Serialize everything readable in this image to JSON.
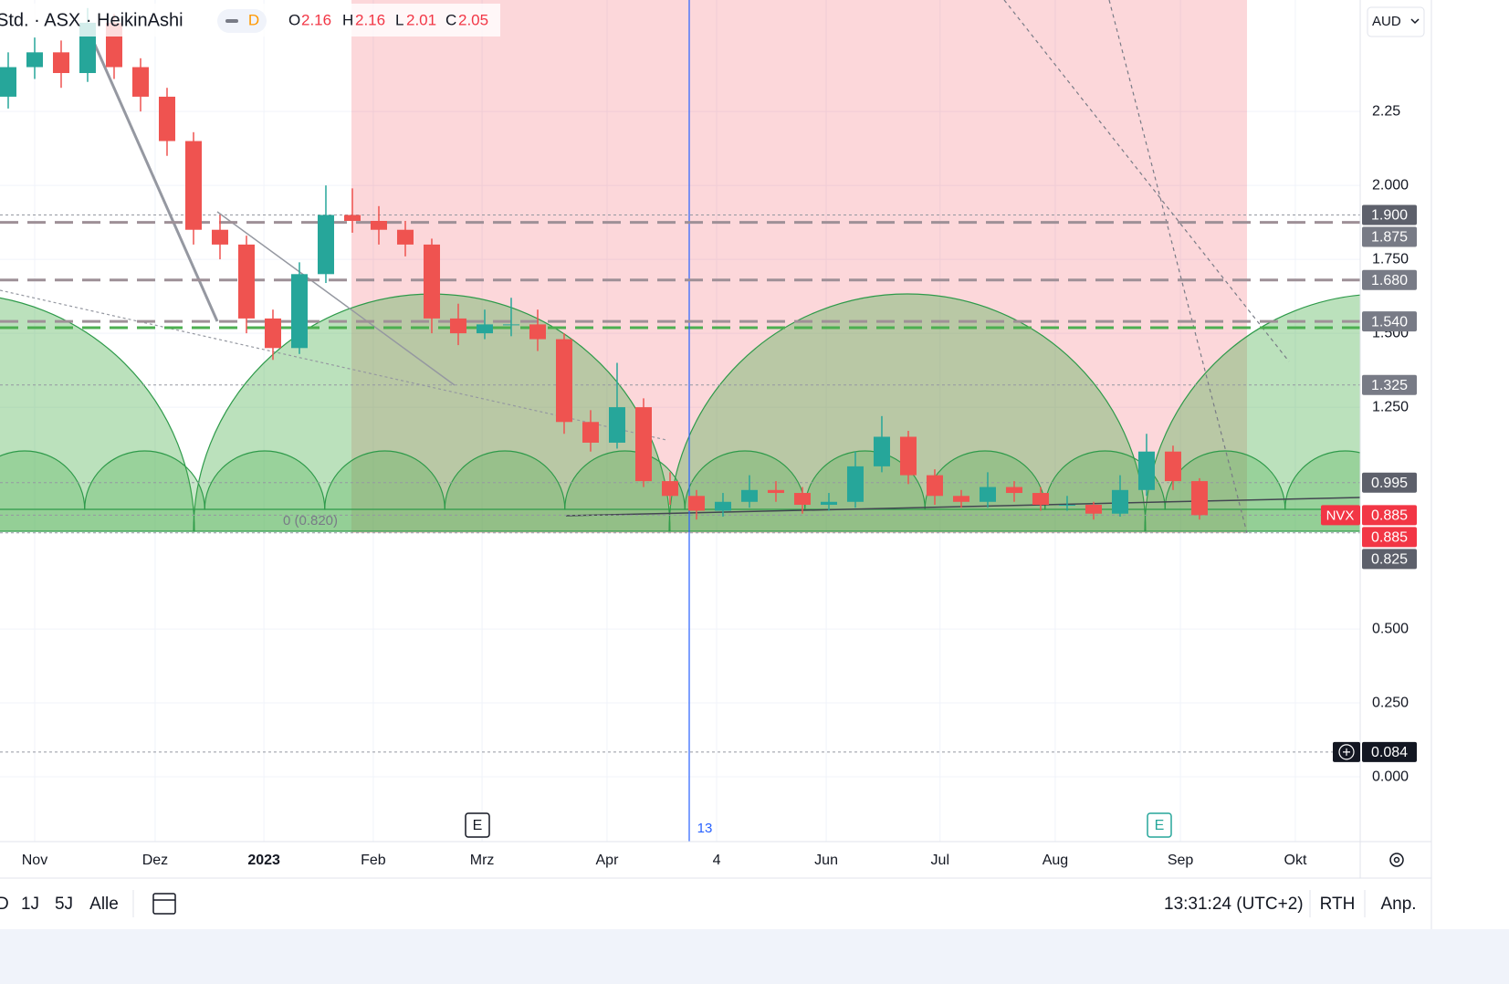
{
  "chart_data": {
    "type": "candlestick",
    "title": "Std. · ASX · HeikinAshi",
    "interval": "D",
    "ohlc": [
      {
        "key": "O",
        "value": 2.16
      },
      {
        "key": "H",
        "value": 2.16
      },
      {
        "key": "L",
        "value": 2.01
      },
      {
        "key": "C",
        "value": 2.05
      }
    ],
    "currency": "AUD",
    "up_color": "#26a69a",
    "down_color": "#ef5350",
    "x": [
      0,
      1,
      2,
      3,
      4,
      5,
      6,
      7,
      8,
      9,
      10,
      11,
      12,
      13,
      14,
      15,
      16,
      17,
      18,
      19,
      20,
      21,
      22,
      23,
      24,
      25,
      26,
      27,
      28,
      29,
      30,
      31,
      32,
      33,
      34,
      35,
      36,
      37,
      38,
      39,
      40,
      41,
      42,
      43,
      44,
      45
    ],
    "open": [
      2.3,
      2.4,
      2.45,
      2.38,
      2.55,
      2.4,
      2.3,
      2.15,
      1.85,
      1.8,
      1.55,
      1.45,
      1.7,
      1.9,
      1.88,
      1.85,
      1.8,
      1.55,
      1.5,
      1.53,
      1.53,
      1.48,
      1.2,
      1.13,
      1.25,
      1.0,
      0.95,
      0.9,
      0.93,
      0.97,
      0.96,
      0.92,
      0.93,
      1.05,
      1.15,
      1.02,
      0.95,
      0.93,
      0.98,
      0.96,
      0.92,
      0.92,
      0.89,
      0.97,
      1.1,
      1.0
    ],
    "high": [
      2.45,
      2.5,
      2.49,
      2.6,
      2.58,
      2.43,
      2.33,
      2.18,
      1.9,
      1.83,
      1.58,
      1.74,
      2.0,
      1.99,
      1.93,
      1.88,
      1.82,
      1.6,
      1.58,
      1.62,
      1.58,
      1.5,
      1.24,
      1.4,
      1.28,
      1.03,
      0.97,
      0.96,
      1.02,
      1.0,
      0.98,
      0.96,
      1.1,
      1.22,
      1.17,
      1.04,
      0.97,
      1.03,
      1.0,
      0.98,
      0.95,
      0.93,
      1.02,
      1.16,
      1.12,
      1.01
    ],
    "low": [
      2.26,
      2.36,
      2.33,
      2.35,
      2.36,
      2.25,
      2.1,
      1.8,
      1.75,
      1.5,
      1.41,
      1.43,
      1.67,
      1.84,
      1.8,
      1.76,
      1.5,
      1.46,
      1.48,
      1.49,
      1.44,
      1.16,
      1.1,
      1.11,
      0.98,
      0.92,
      0.87,
      0.88,
      0.91,
      0.93,
      0.89,
      0.9,
      0.91,
      1.03,
      0.99,
      0.92,
      0.91,
      0.91,
      0.93,
      0.9,
      0.9,
      0.87,
      0.88,
      0.95,
      0.97,
      0.87
    ],
    "close": [
      2.4,
      2.45,
      2.38,
      2.55,
      2.4,
      2.3,
      2.15,
      1.85,
      1.8,
      1.55,
      1.45,
      1.7,
      1.9,
      1.88,
      1.85,
      1.8,
      1.55,
      1.5,
      1.53,
      1.53,
      1.48,
      1.2,
      1.13,
      1.25,
      1.0,
      0.95,
      0.9,
      0.93,
      0.97,
      0.96,
      0.92,
      0.93,
      1.05,
      1.15,
      1.02,
      0.95,
      0.93,
      0.98,
      0.96,
      0.92,
      0.92,
      0.89,
      0.97,
      1.1,
      1.0,
      0.885
    ],
    "xlim": [
      -0.31,
      51.07
    ],
    "xticks": [
      {
        "value": 1.0,
        "label": "Nov"
      },
      {
        "value": 5.55,
        "label": "Dez"
      },
      {
        "value": 9.66,
        "label": "2023"
      },
      {
        "value": 13.79,
        "label": "Feb"
      },
      {
        "value": 17.9,
        "label": "Mrz"
      },
      {
        "value": 22.62,
        "label": "Apr"
      },
      {
        "value": 26.76,
        "label": "4"
      },
      {
        "value": 30.9,
        "label": "Jun"
      },
      {
        "value": 35.2,
        "label": "Jul"
      },
      {
        "value": 39.55,
        "label": "Aug"
      },
      {
        "value": 44.28,
        "label": "Sep"
      },
      {
        "value": 48.62,
        "label": "Okt"
      }
    ],
    "ylim": [
      -0.219,
      2.627
    ],
    "yticks": [
      {
        "value": 0,
        "label": "0.000"
      },
      {
        "value": 0.25,
        "label": "0.250"
      },
      {
        "value": 0.5,
        "label": "0.500"
      },
      {
        "value": 1.25,
        "label": "1.250"
      },
      {
        "value": 1.5,
        "label": "1.500"
      },
      {
        "value": 1.75,
        "label": "1.750"
      },
      {
        "value": 2,
        "label": "2.000"
      },
      2.25
    ],
    "grid": true,
    "levels": [
      {
        "value": 1.9,
        "label": "1.900",
        "line": "dotted",
        "color": "#5d606b"
      },
      {
        "value": 1.875,
        "label": "1.875",
        "line": "long-dash",
        "color": "#787b86"
      },
      {
        "value": 1.68,
        "label": "1.680",
        "line": "long-dash",
        "color": "#787b86"
      },
      {
        "value": 1.54,
        "label": "1.540",
        "line": "long-dash",
        "color": "#787b86"
      },
      {
        "value": 1.325,
        "label": "1.325",
        "line": "dotted",
        "color": "#787b86"
      },
      {
        "value": 0.995,
        "label": "0.995",
        "line": "dotted",
        "color": "#5d606b"
      },
      {
        "value": 0.885,
        "label": "0.885",
        "line": "dotted",
        "color": "#f23645",
        "symbol": "NVX"
      },
      {
        "value": 0.885,
        "label": "0.885",
        "line": "none",
        "color": "#f23645"
      },
      {
        "value": 0.825,
        "label": "0.825",
        "line": "dotted",
        "color": "#5d606b"
      },
      {
        "value": 0.084,
        "label": "0.084",
        "line": "dotted",
        "color": "#131722"
      }
    ],
    "annotations": {
      "fib_label": "0 (0.820)",
      "vertical_label": "13",
      "earnings": [
        "E",
        "E"
      ]
    }
  },
  "toolbar": {
    "ranges": [
      "D",
      "1J",
      "5J",
      "Alle"
    ],
    "clock": "13:31:24 (UTC+2)",
    "session": "RTH",
    "adjust": "Anp."
  }
}
